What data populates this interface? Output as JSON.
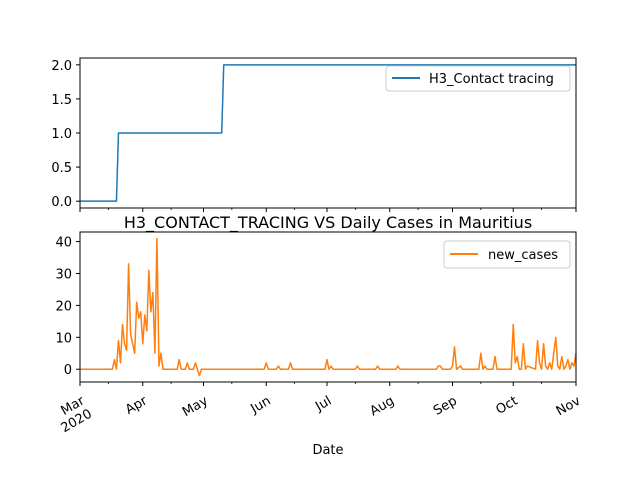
{
  "chart_data": [
    {
      "type": "line",
      "title": "",
      "xlabel": "",
      "ylabel": "",
      "ylim": [
        -0.1,
        2.1
      ],
      "yticks": [
        "0.0",
        "0.5",
        "1.0",
        "1.5",
        "2.0"
      ],
      "legend": {
        "position": "top-right"
      },
      "series": [
        {
          "name": "H3_Contact tracing",
          "color": "#1f77b4",
          "points": [
            [
              "2020-03-01",
              0
            ],
            [
              "2020-03-19",
              0
            ],
            [
              "2020-03-20",
              1
            ],
            [
              "2020-05-10",
              1
            ],
            [
              "2020-05-11",
              2
            ],
            [
              "2020-11-01",
              2
            ]
          ]
        }
      ]
    },
    {
      "type": "line",
      "title": "H3_CONTACT_TRACING VS Daily Cases in Mauritius",
      "xlabel": "Date",
      "ylabel": "",
      "ylim": [
        -4,
        43
      ],
      "yticks": [
        "0",
        "10",
        "20",
        "30",
        "40"
      ],
      "xticks": [
        [
          "2020-03-01",
          "Mar\n2020"
        ],
        [
          "2020-04-01",
          "Apr"
        ],
        [
          "2020-05-01",
          "May"
        ],
        [
          "2020-06-01",
          "Jun"
        ],
        [
          "2020-07-01",
          "Jul"
        ],
        [
          "2020-08-01",
          "Aug"
        ],
        [
          "2020-09-01",
          "Sep"
        ],
        [
          "2020-10-01",
          "Oct"
        ],
        [
          "2020-11-01",
          "Nov"
        ]
      ],
      "legend": {
        "position": "top-right"
      },
      "series": [
        {
          "name": "new_cases",
          "color": "#ff7f0e",
          "points": [
            [
              "2020-03-01",
              0
            ],
            [
              "2020-03-17",
              0
            ],
            [
              "2020-03-18",
              3
            ],
            [
              "2020-03-19",
              0
            ],
            [
              "2020-03-20",
              9
            ],
            [
              "2020-03-21",
              2
            ],
            [
              "2020-03-22",
              14
            ],
            [
              "2020-03-23",
              8
            ],
            [
              "2020-03-24",
              6
            ],
            [
              "2020-03-25",
              33
            ],
            [
              "2020-03-26",
              11
            ],
            [
              "2020-03-27",
              8
            ],
            [
              "2020-03-28",
              5
            ],
            [
              "2020-03-29",
              21
            ],
            [
              "2020-03-30",
              16
            ],
            [
              "2020-03-31",
              18
            ],
            [
              "2020-04-01",
              8
            ],
            [
              "2020-04-02",
              17
            ],
            [
              "2020-04-03",
              12
            ],
            [
              "2020-04-04",
              31
            ],
            [
              "2020-04-05",
              18
            ],
            [
              "2020-04-06",
              24
            ],
            [
              "2020-04-07",
              5
            ],
            [
              "2020-04-08",
              41
            ],
            [
              "2020-04-09",
              1
            ],
            [
              "2020-04-10",
              5
            ],
            [
              "2020-04-11",
              0
            ],
            [
              "2020-04-18",
              0
            ],
            [
              "2020-04-19",
              3
            ],
            [
              "2020-04-20",
              0
            ],
            [
              "2020-04-22",
              0
            ],
            [
              "2020-04-23",
              2
            ],
            [
              "2020-04-24",
              0
            ],
            [
              "2020-04-26",
              0
            ],
            [
              "2020-04-27",
              2
            ],
            [
              "2020-04-28",
              0
            ],
            [
              "2020-04-29",
              -2
            ],
            [
              "2020-04-30",
              0
            ],
            [
              "2020-05-31",
              0
            ],
            [
              "2020-06-01",
              2
            ],
            [
              "2020-06-02",
              0
            ],
            [
              "2020-06-06",
              0
            ],
            [
              "2020-06-07",
              1
            ],
            [
              "2020-06-08",
              0
            ],
            [
              "2020-06-12",
              0
            ],
            [
              "2020-06-13",
              2
            ],
            [
              "2020-06-14",
              0
            ],
            [
              "2020-06-30",
              0
            ],
            [
              "2020-07-01",
              3
            ],
            [
              "2020-07-02",
              0
            ],
            [
              "2020-07-03",
              1
            ],
            [
              "2020-07-04",
              0
            ],
            [
              "2020-07-15",
              0
            ],
            [
              "2020-07-16",
              1
            ],
            [
              "2020-07-17",
              0
            ],
            [
              "2020-07-25",
              0
            ],
            [
              "2020-07-26",
              1
            ],
            [
              "2020-07-27",
              0
            ],
            [
              "2020-08-04",
              0
            ],
            [
              "2020-08-05",
              1
            ],
            [
              "2020-08-06",
              0
            ],
            [
              "2020-08-24",
              0
            ],
            [
              "2020-08-25",
              1
            ],
            [
              "2020-08-26",
              1
            ],
            [
              "2020-08-27",
              0
            ],
            [
              "2020-08-31",
              0
            ],
            [
              "2020-09-01",
              1
            ],
            [
              "2020-09-02",
              7
            ],
            [
              "2020-09-03",
              0
            ],
            [
              "2020-09-05",
              1
            ],
            [
              "2020-09-06",
              0
            ],
            [
              "2020-09-14",
              0
            ],
            [
              "2020-09-15",
              5
            ],
            [
              "2020-09-16",
              0
            ],
            [
              "2020-09-17",
              1
            ],
            [
              "2020-09-18",
              0
            ],
            [
              "2020-09-21",
              0
            ],
            [
              "2020-09-22",
              4
            ],
            [
              "2020-09-23",
              0
            ],
            [
              "2020-09-29",
              0
            ],
            [
              "2020-09-30",
              0
            ],
            [
              "2020-10-01",
              14
            ],
            [
              "2020-10-02",
              2
            ],
            [
              "2020-10-03",
              4
            ],
            [
              "2020-10-04",
              0
            ],
            [
              "2020-10-05",
              0
            ],
            [
              "2020-10-06",
              8
            ],
            [
              "2020-10-07",
              0
            ],
            [
              "2020-10-08",
              1
            ],
            [
              "2020-10-12",
              0
            ],
            [
              "2020-10-13",
              9
            ],
            [
              "2020-10-14",
              2
            ],
            [
              "2020-10-15",
              0
            ],
            [
              "2020-10-16",
              8
            ],
            [
              "2020-10-17",
              1
            ],
            [
              "2020-10-18",
              0
            ],
            [
              "2020-10-19",
              2
            ],
            [
              "2020-10-20",
              0
            ],
            [
              "2020-10-21",
              5
            ],
            [
              "2020-10-22",
              10
            ],
            [
              "2020-10-23",
              1
            ],
            [
              "2020-10-24",
              0
            ],
            [
              "2020-10-25",
              4
            ],
            [
              "2020-10-26",
              0
            ],
            [
              "2020-10-27",
              1
            ],
            [
              "2020-10-28",
              3
            ],
            [
              "2020-10-29",
              0
            ],
            [
              "2020-10-30",
              2
            ],
            [
              "2020-10-31",
              1
            ],
            [
              "2020-11-01",
              5
            ]
          ]
        }
      ]
    }
  ],
  "colors": {
    "axes": "#000000",
    "background": "#ffffff",
    "legend_border": "#cccccc"
  }
}
